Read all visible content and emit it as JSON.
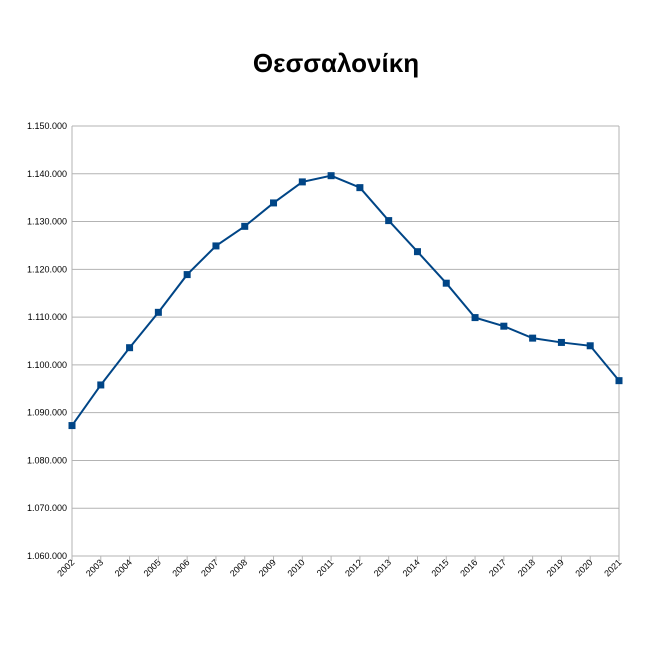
{
  "chart_data": {
    "type": "line",
    "title": "Θεσσαλονίκη",
    "xlabel": "",
    "ylabel": "",
    "categories": [
      "2002",
      "2003",
      "2004",
      "2005",
      "2006",
      "2007",
      "2008",
      "2009",
      "2010",
      "2011",
      "2012",
      "2013",
      "2014",
      "2015",
      "2016",
      "2017",
      "2018",
      "2019",
      "2020",
      "2021"
    ],
    "series": [
      {
        "values": [
          1087300,
          1095800,
          1103600,
          1111000,
          1118900,
          1124900,
          1129000,
          1133900,
          1138300,
          1139600,
          1137100,
          1130200,
          1123700,
          1117100,
          1109900,
          1108100,
          1105600,
          1104700,
          1104000,
          1096700
        ]
      }
    ],
    "ylim": [
      1060000,
      1150000
    ],
    "yticks": [
      1060000,
      1070000,
      1080000,
      1090000,
      1100000,
      1110000,
      1120000,
      1130000,
      1140000,
      1150000
    ],
    "ytick_labels": [
      "1.060.000",
      "1.070.000",
      "1.080.000",
      "1.090.000",
      "1.100.000",
      "1.110.000",
      "1.120.000",
      "1.130.000",
      "1.140.000",
      "1.150.000"
    ],
    "grid": true,
    "legend": "none",
    "line_color": "#004586",
    "grid_color": "#b3b3b3"
  }
}
